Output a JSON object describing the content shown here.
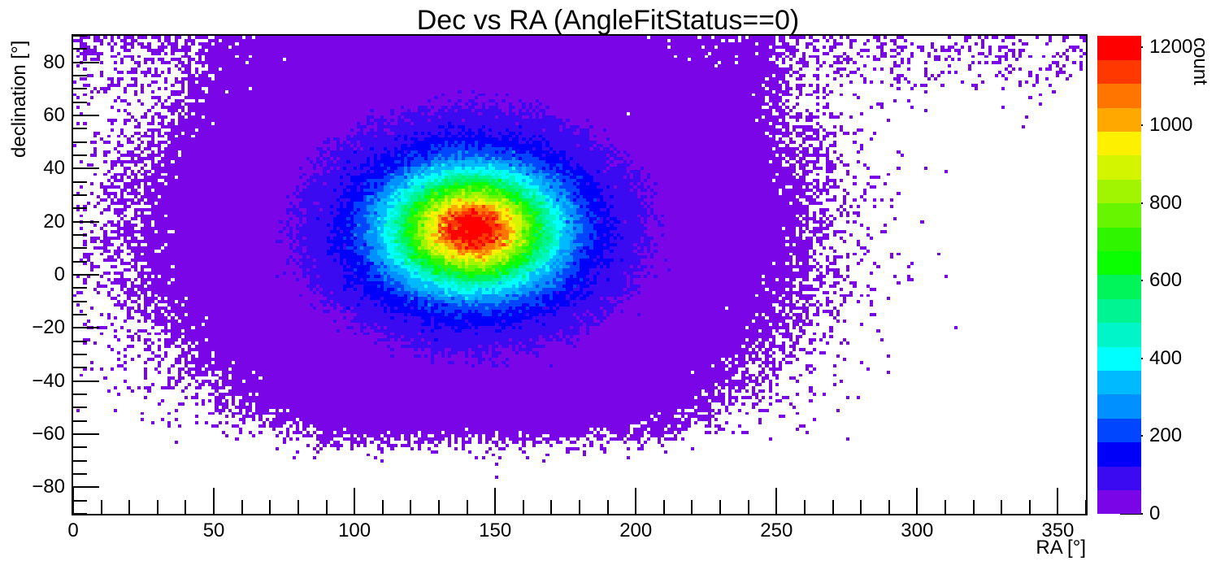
{
  "title": "Dec vs RA (AngleFitStatus==0)",
  "axes": {
    "x": {
      "title": "RA [°]",
      "min": 0,
      "max": 360,
      "major_ticks": [
        {
          "v": 0,
          "label": "0"
        },
        {
          "v": 50,
          "label": "50"
        },
        {
          "v": 100,
          "label": "100"
        },
        {
          "v": 150,
          "label": "150"
        },
        {
          "v": 200,
          "label": "200"
        },
        {
          "v": 250,
          "label": "250"
        },
        {
          "v": 300,
          "label": "300"
        },
        {
          "v": 350,
          "label": "350"
        }
      ],
      "minor_step": 10
    },
    "y": {
      "title": "declination [°]",
      "min": -90,
      "max": 90,
      "major_ticks": [
        {
          "v": 80,
          "label": "80"
        },
        {
          "v": 60,
          "label": "60"
        },
        {
          "v": 40,
          "label": "40"
        },
        {
          "v": 20,
          "label": "20"
        },
        {
          "v": 0,
          "label": "0"
        },
        {
          "v": -20,
          "label": "−20"
        },
        {
          "v": -40,
          "label": "−40"
        },
        {
          "v": -60,
          "label": "−60"
        },
        {
          "v": -80,
          "label": "−80"
        }
      ],
      "minor_step": 5
    },
    "z": {
      "title": "count",
      "min": 0,
      "max": 1230,
      "major_ticks": [
        {
          "v": 0,
          "label": "0"
        },
        {
          "v": 200,
          "label": "200"
        },
        {
          "v": 400,
          "label": "400"
        },
        {
          "v": 600,
          "label": "600"
        },
        {
          "v": 800,
          "label": "800"
        },
        {
          "v": 1000,
          "label": "1000"
        },
        {
          "v": 1200,
          "label": "1200"
        }
      ]
    }
  },
  "chart_data": {
    "type": "heatmap",
    "title": "Dec vs RA (AngleFitStatus==0)",
    "xlabel": "RA [°]",
    "ylabel": "declination [°]",
    "zlabel": "count",
    "x_range": [
      0,
      360
    ],
    "y_range": [
      -90,
      90
    ],
    "z_range": [
      0,
      1230
    ],
    "bins": {
      "nx": 300,
      "ny": 150
    },
    "levels": 20,
    "palette": [
      "#7a06e8",
      "#3c0af0",
      "#0000fa",
      "#0045ff",
      "#0090ff",
      "#00baff",
      "#00ffff",
      "#00f5c8",
      "#00f592",
      "#00f55a",
      "#0aff00",
      "#30f500",
      "#68f500",
      "#a2f500",
      "#d4f500",
      "#fdf000",
      "#ffa800",
      "#ff7500",
      "#ff3800",
      "#ff0000"
    ],
    "background_color": "#ffffff",
    "model": {
      "description": "Dense quasi-Gaussian event cluster (peak count ~1260 at RA~142, Dec~17) on a fan-shaped low-count (1-5) background spanning roughly RA 60-250 that narrows toward Dec~-65, plus a sparse scatter band near the celestial pole (Dec>70) across all RA; empty (white) elsewhere.",
      "peak": {
        "ra": 142,
        "dec": 17,
        "max_count": 1260
      },
      "core_components": [
        {
          "amplitude": 1000,
          "sigma_deg": 13
        },
        {
          "amplitude": 260,
          "sigma_deg": 27
        }
      ],
      "ra_ellipticity": 1.35,
      "background": {
        "amplitude": 3.0,
        "ra_center": 150,
        "halfwidth_base_deg": 74,
        "halfwidth_slope": 22,
        "edge_decay_deg": 7,
        "bottom_cut_dec": -50,
        "bottom_scale_deg": 9,
        "top_fade_start_dec": 70,
        "top_fade_frac": 0.6
      },
      "polar_band": {
        "amplitude": 0.38,
        "scale_deg": 15,
        "left_boost": 0.9,
        "left_scale_deg": 45,
        "right_boost": 0.15,
        "right_scale_deg": 60
      },
      "noise_factor": 1.5
    }
  }
}
